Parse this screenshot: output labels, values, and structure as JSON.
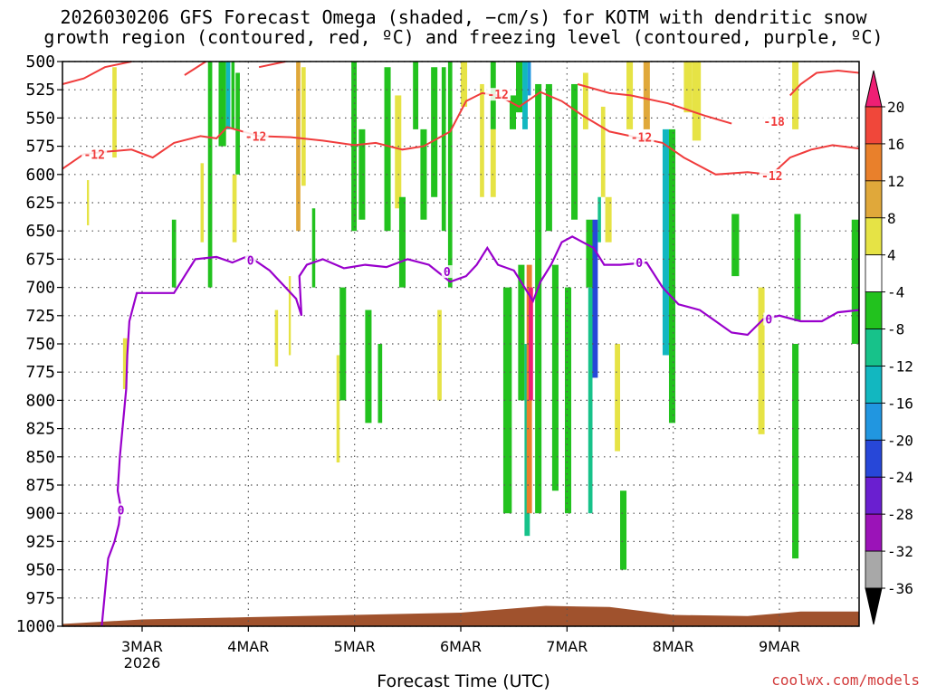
{
  "title": {
    "line1": "2026030206 GFS Forecast Omega (shaded, −cm/s) for KOTM with dendritic snow",
    "line2": "growth region (contoured, red, ºC) and freezing level (contoured, purple, ºC)"
  },
  "footer": {
    "xlabel": "Forecast Time (UTC)",
    "credit": "coolwx.com/models"
  },
  "chart_data": {
    "type": "heatmap",
    "y_axis": {
      "label": "",
      "unit": "hPa",
      "ticks": [
        500,
        525,
        550,
        575,
        600,
        625,
        650,
        675,
        700,
        725,
        750,
        775,
        800,
        825,
        850,
        875,
        900,
        925,
        950,
        975,
        1000
      ]
    },
    "x_axis": {
      "ticks": [
        {
          "day": 3,
          "label": "3MAR",
          "sublabel": "2026"
        },
        {
          "day": 4,
          "label": "4MAR",
          "sublabel": ""
        },
        {
          "day": 5,
          "label": "5MAR",
          "sublabel": ""
        },
        {
          "day": 6,
          "label": "6MAR",
          "sublabel": ""
        },
        {
          "day": 7,
          "label": "7MAR",
          "sublabel": ""
        },
        {
          "day": 8,
          "label": "8MAR",
          "sublabel": ""
        },
        {
          "day": 9,
          "label": "9MAR",
          "sublabel": ""
        }
      ],
      "range_days": [
        2.25,
        9.75
      ]
    },
    "colorbar": {
      "labels": [
        "20",
        "16",
        "12",
        "8",
        "4",
        "-4",
        "-8",
        "-12",
        "-16",
        "-20",
        "-24",
        "-28",
        "-32",
        "-36"
      ],
      "bounds": [
        24,
        20,
        16,
        12,
        8,
        4,
        -4,
        -8,
        -12,
        -16,
        -20,
        -24,
        -28,
        -32,
        -36,
        -40
      ],
      "colors": [
        "#ee1f74",
        "#f0473a",
        "#e9802b",
        "#e0a83a",
        "#e6e345",
        "#ffffff",
        "#22c21e",
        "#17c28a",
        "#12b7c0",
        "#2196e0",
        "#2747d8",
        "#6a1fd0",
        "#9b13b8",
        "#a8a8a8",
        "#000000"
      ]
    },
    "omega_cells": [
      {
        "x0": 2.48,
        "x1": 2.5,
        "p0": 605,
        "p1": 645,
        "v": 6
      },
      {
        "x0": 2.72,
        "x1": 2.76,
        "p0": 505,
        "p1": 585,
        "v": 6
      },
      {
        "x0": 2.82,
        "x1": 2.86,
        "p0": 745,
        "p1": 790,
        "v": 6
      },
      {
        "x0": 3.28,
        "x1": 3.32,
        "p0": 640,
        "p1": 700,
        "v": -6
      },
      {
        "x0": 3.55,
        "x1": 3.58,
        "p0": 590,
        "p1": 660,
        "v": 6
      },
      {
        "x0": 3.62,
        "x1": 3.66,
        "p0": 500,
        "p1": 700,
        "v": -6
      },
      {
        "x0": 3.72,
        "x1": 3.79,
        "p0": 500,
        "p1": 575,
        "v": -6
      },
      {
        "x0": 3.79,
        "x1": 3.83,
        "p0": 500,
        "p1": 560,
        "v": -14
      },
      {
        "x0": 3.84,
        "x1": 3.87,
        "p0": 500,
        "p1": 560,
        "v": -6
      },
      {
        "x0": 3.88,
        "x1": 3.92,
        "p0": 510,
        "p1": 600,
        "v": -6
      },
      {
        "x0": 3.85,
        "x1": 3.89,
        "p0": 600,
        "p1": 660,
        "v": 6
      },
      {
        "x0": 4.25,
        "x1": 4.28,
        "p0": 720,
        "p1": 770,
        "v": 6
      },
      {
        "x0": 4.38,
        "x1": 4.4,
        "p0": 690,
        "p1": 760,
        "v": 6
      },
      {
        "x0": 4.45,
        "x1": 4.49,
        "p0": 500,
        "p1": 650,
        "v": 10
      },
      {
        "x0": 4.5,
        "x1": 4.54,
        "p0": 505,
        "p1": 610,
        "v": 6
      },
      {
        "x0": 4.6,
        "x1": 4.63,
        "p0": 630,
        "p1": 700,
        "v": -6
      },
      {
        "x0": 4.83,
        "x1": 4.86,
        "p0": 760,
        "p1": 855,
        "v": 6
      },
      {
        "x0": 4.86,
        "x1": 4.92,
        "p0": 700,
        "p1": 800,
        "v": -6
      },
      {
        "x0": 4.97,
        "x1": 5.02,
        "p0": 500,
        "p1": 650,
        "v": -6
      },
      {
        "x0": 5.04,
        "x1": 5.1,
        "p0": 560,
        "p1": 640,
        "v": -6
      },
      {
        "x0": 5.1,
        "x1": 5.16,
        "p0": 720,
        "p1": 820,
        "v": -6
      },
      {
        "x0": 5.28,
        "x1": 5.34,
        "p0": 505,
        "p1": 650,
        "v": -6
      },
      {
        "x0": 5.38,
        "x1": 5.44,
        "p0": 530,
        "p1": 630,
        "v": 6
      },
      {
        "x0": 5.22,
        "x1": 5.26,
        "p0": 750,
        "p1": 820,
        "v": -6
      },
      {
        "x0": 5.42,
        "x1": 5.48,
        "p0": 620,
        "p1": 700,
        "v": -6
      },
      {
        "x0": 5.55,
        "x1": 5.6,
        "p0": 500,
        "p1": 560,
        "v": -6
      },
      {
        "x0": 5.62,
        "x1": 5.68,
        "p0": 560,
        "p1": 640,
        "v": -6
      },
      {
        "x0": 5.72,
        "x1": 5.78,
        "p0": 505,
        "p1": 620,
        "v": -6
      },
      {
        "x0": 5.78,
        "x1": 5.82,
        "p0": 720,
        "p1": 800,
        "v": 6
      },
      {
        "x0": 5.82,
        "x1": 5.86,
        "p0": 505,
        "p1": 650,
        "v": -6
      },
      {
        "x0": 5.88,
        "x1": 5.92,
        "p0": 500,
        "p1": 700,
        "v": -6
      },
      {
        "x0": 6.0,
        "x1": 6.06,
        "p0": 500,
        "p1": 540,
        "v": 6
      },
      {
        "x0": 6.18,
        "x1": 6.22,
        "p0": 520,
        "p1": 620,
        "v": 6
      },
      {
        "x0": 6.28,
        "x1": 6.33,
        "p0": 500,
        "p1": 560,
        "v": -6
      },
      {
        "x0": 6.28,
        "x1": 6.33,
        "p0": 560,
        "p1": 620,
        "v": 6
      },
      {
        "x0": 6.4,
        "x1": 6.48,
        "p0": 700,
        "p1": 900,
        "v": -6
      },
      {
        "x0": 6.46,
        "x1": 6.52,
        "p0": 530,
        "p1": 560,
        "v": -6
      },
      {
        "x0": 6.52,
        "x1": 6.58,
        "p0": 500,
        "p1": 545,
        "v": -6
      },
      {
        "x0": 6.58,
        "x1": 6.63,
        "p0": 500,
        "p1": 560,
        "v": -14
      },
      {
        "x0": 6.63,
        "x1": 6.66,
        "p0": 500,
        "p1": 530,
        "v": -18
      },
      {
        "x0": 6.54,
        "x1": 6.6,
        "p0": 680,
        "p1": 800,
        "v": -6
      },
      {
        "x0": 6.6,
        "x1": 6.65,
        "p0": 750,
        "p1": 920,
        "v": -10
      },
      {
        "x0": 6.62,
        "x1": 6.67,
        "p0": 680,
        "p1": 900,
        "v": 14
      },
      {
        "x0": 6.64,
        "x1": 6.68,
        "p0": 700,
        "p1": 800,
        "v": 22
      },
      {
        "x0": 6.7,
        "x1": 6.76,
        "p0": 520,
        "p1": 900,
        "v": -6
      },
      {
        "x0": 6.8,
        "x1": 6.86,
        "p0": 520,
        "p1": 650,
        "v": -6
      },
      {
        "x0": 6.86,
        "x1": 6.92,
        "p0": 680,
        "p1": 880,
        "v": -6
      },
      {
        "x0": 6.98,
        "x1": 7.04,
        "p0": 700,
        "p1": 900,
        "v": -6
      },
      {
        "x0": 7.04,
        "x1": 7.1,
        "p0": 520,
        "p1": 640,
        "v": -6
      },
      {
        "x0": 7.15,
        "x1": 7.2,
        "p0": 510,
        "p1": 560,
        "v": 6
      },
      {
        "x0": 7.18,
        "x1": 7.24,
        "p0": 640,
        "p1": 700,
        "v": -6
      },
      {
        "x0": 7.2,
        "x1": 7.24,
        "p0": 700,
        "p1": 900,
        "v": -10
      },
      {
        "x0": 7.24,
        "x1": 7.29,
        "p0": 640,
        "p1": 780,
        "v": -22
      },
      {
        "x0": 7.29,
        "x1": 7.32,
        "p0": 620,
        "p1": 660,
        "v": -10
      },
      {
        "x0": 7.32,
        "x1": 7.36,
        "p0": 540,
        "p1": 620,
        "v": 6
      },
      {
        "x0": 7.36,
        "x1": 7.42,
        "p0": 620,
        "p1": 660,
        "v": 6
      },
      {
        "x0": 7.45,
        "x1": 7.5,
        "p0": 750,
        "p1": 845,
        "v": 6
      },
      {
        "x0": 7.5,
        "x1": 7.56,
        "p0": 880,
        "p1": 950,
        "v": -6
      },
      {
        "x0": 7.56,
        "x1": 7.62,
        "p0": 500,
        "p1": 560,
        "v": 6
      },
      {
        "x0": 7.72,
        "x1": 7.78,
        "p0": 500,
        "p1": 560,
        "v": 10
      },
      {
        "x0": 7.9,
        "x1": 7.96,
        "p0": 560,
        "p1": 760,
        "v": -14
      },
      {
        "x0": 7.96,
        "x1": 8.02,
        "p0": 560,
        "p1": 820,
        "v": -6
      },
      {
        "x0": 8.1,
        "x1": 8.18,
        "p0": 500,
        "p1": 545,
        "v": 6
      },
      {
        "x0": 8.18,
        "x1": 8.26,
        "p0": 500,
        "p1": 570,
        "v": 6
      },
      {
        "x0": 8.55,
        "x1": 8.62,
        "p0": 635,
        "p1": 690,
        "v": -6
      },
      {
        "x0": 8.8,
        "x1": 8.86,
        "p0": 700,
        "p1": 830,
        "v": 6
      },
      {
        "x0": 9.12,
        "x1": 9.18,
        "p0": 500,
        "p1": 560,
        "v": 6
      },
      {
        "x0": 9.14,
        "x1": 9.2,
        "p0": 635,
        "p1": 730,
        "v": -6
      },
      {
        "x0": 9.12,
        "x1": 9.18,
        "p0": 750,
        "p1": 940,
        "v": -6
      },
      {
        "x0": 9.68,
        "x1": 9.75,
        "p0": 640,
        "p1": 750,
        "v": -6
      }
    ],
    "dgz_minus12": [
      [
        [
          2.25,
          595
        ],
        [
          2.45,
          582
        ],
        [
          2.65,
          580
        ],
        [
          2.9,
          578
        ],
        [
          3.1,
          585
        ],
        [
          3.3,
          572
        ],
        [
          3.55,
          566
        ],
        [
          3.7,
          568
        ],
        [
          3.8,
          558
        ],
        [
          3.95,
          562
        ],
        [
          4.1,
          566
        ],
        [
          4.4,
          567
        ],
        [
          4.7,
          570
        ],
        [
          5.0,
          574
        ],
        [
          5.2,
          572
        ],
        [
          5.45,
          578
        ],
        [
          5.65,
          575
        ],
        [
          5.9,
          562
        ],
        [
          6.05,
          535
        ],
        [
          6.2,
          528
        ],
        [
          6.35,
          530
        ],
        [
          6.55,
          540
        ],
        [
          6.75,
          527
        ],
        [
          6.95,
          535
        ],
        [
          7.15,
          548
        ],
        [
          7.4,
          562
        ],
        [
          7.7,
          568
        ],
        [
          7.9,
          572
        ],
        [
          8.1,
          585
        ],
        [
          8.4,
          600
        ],
        [
          8.7,
          598
        ],
        [
          8.9,
          600
        ]
      ],
      [
        [
          8.95,
          598
        ],
        [
          9.1,
          585
        ],
        [
          9.3,
          578
        ],
        [
          9.5,
          574
        ],
        [
          9.75,
          577
        ]
      ]
    ],
    "dgz_minus18": [
      [
        [
          2.25,
          520
        ],
        [
          2.45,
          515
        ],
        [
          2.65,
          505
        ],
        [
          2.9,
          500
        ]
      ],
      [
        [
          3.4,
          512
        ],
        [
          3.6,
          500
        ]
      ],
      [
        [
          4.1,
          505
        ],
        [
          4.35,
          500
        ]
      ],
      [
        [
          7.1,
          520
        ],
        [
          7.4,
          528
        ],
        [
          7.6,
          530
        ],
        [
          7.95,
          537
        ],
        [
          8.3,
          548
        ],
        [
          8.55,
          555
        ]
      ],
      [
        [
          9.1,
          530
        ],
        [
          9.2,
          520
        ],
        [
          9.35,
          510
        ],
        [
          9.55,
          508
        ],
        [
          9.75,
          510
        ]
      ]
    ],
    "freezing_level": [
      [
        2.62,
        1000
      ],
      [
        2.68,
        940
      ],
      [
        2.74,
        925
      ],
      [
        2.78,
        910
      ],
      [
        2.8,
        895
      ],
      [
        2.77,
        880
      ],
      [
        2.79,
        850
      ],
      [
        2.82,
        820
      ],
      [
        2.85,
        790
      ],
      [
        2.86,
        760
      ],
      [
        2.88,
        730
      ],
      [
        2.95,
        705
      ],
      [
        3.1,
        705
      ],
      [
        3.3,
        705
      ],
      [
        3.4,
        690
      ],
      [
        3.5,
        675
      ],
      [
        3.7,
        673
      ],
      [
        3.85,
        678
      ],
      [
        4.0,
        672
      ],
      [
        4.2,
        685
      ],
      [
        4.35,
        700
      ],
      [
        4.45,
        710
      ],
      [
        4.5,
        725
      ],
      [
        4.48,
        690
      ],
      [
        4.55,
        680
      ],
      [
        4.7,
        675
      ],
      [
        4.9,
        683
      ],
      [
        5.1,
        680
      ],
      [
        5.3,
        682
      ],
      [
        5.5,
        675
      ],
      [
        5.7,
        680
      ],
      [
        5.9,
        695
      ],
      [
        6.05,
        690
      ],
      [
        6.15,
        680
      ],
      [
        6.25,
        665
      ],
      [
        6.35,
        680
      ],
      [
        6.5,
        685
      ],
      [
        6.6,
        700
      ],
      [
        6.68,
        712
      ],
      [
        6.75,
        695
      ],
      [
        6.85,
        680
      ],
      [
        6.95,
        660
      ],
      [
        7.05,
        655
      ],
      [
        7.15,
        660
      ],
      [
        7.25,
        665
      ],
      [
        7.35,
        680
      ],
      [
        7.5,
        680
      ],
      [
        7.75,
        678
      ],
      [
        7.9,
        700
      ],
      [
        8.05,
        715
      ],
      [
        8.25,
        720
      ],
      [
        8.4,
        730
      ],
      [
        8.55,
        740
      ],
      [
        8.7,
        742
      ],
      [
        8.85,
        728
      ],
      [
        9.0,
        725
      ],
      [
        9.2,
        730
      ],
      [
        9.4,
        730
      ],
      [
        9.55,
        722
      ],
      [
        9.75,
        720
      ]
    ],
    "contour_labels": [
      {
        "text": "-12",
        "day": 2.55,
        "p": 582,
        "color": "red"
      },
      {
        "text": "-12",
        "day": 4.07,
        "p": 566,
        "color": "red"
      },
      {
        "text": "-12",
        "day": 6.35,
        "p": 529,
        "color": "red"
      },
      {
        "text": "-12",
        "day": 7.7,
        "p": 567,
        "color": "red"
      },
      {
        "text": "-12",
        "day": 8.93,
        "p": 601,
        "color": "red"
      },
      {
        "text": "-18",
        "day": 8.95,
        "p": 553,
        "color": "red"
      },
      {
        "text": "0",
        "day": 2.8,
        "p": 897,
        "color": "purple"
      },
      {
        "text": "0",
        "day": 4.02,
        "p": 676,
        "color": "purple"
      },
      {
        "text": "0",
        "day": 5.87,
        "p": 686,
        "color": "purple"
      },
      {
        "text": "0",
        "day": 7.68,
        "p": 678,
        "color": "purple"
      },
      {
        "text": "0",
        "day": 8.9,
        "p": 728,
        "color": "purple"
      }
    ],
    "terrain": [
      [
        2.25,
        998
      ],
      [
        3.0,
        994
      ],
      [
        4.0,
        992
      ],
      [
        5.0,
        990
      ],
      [
        6.0,
        988
      ],
      [
        6.8,
        982
      ],
      [
        7.4,
        983
      ],
      [
        8.0,
        990
      ],
      [
        8.7,
        991
      ],
      [
        9.2,
        987
      ],
      [
        9.75,
        987
      ]
    ],
    "colors": {
      "terrain": "#a0522d",
      "dgz": "#f03c3c",
      "freezing": "#9900cc",
      "grid": "#555555"
    }
  }
}
